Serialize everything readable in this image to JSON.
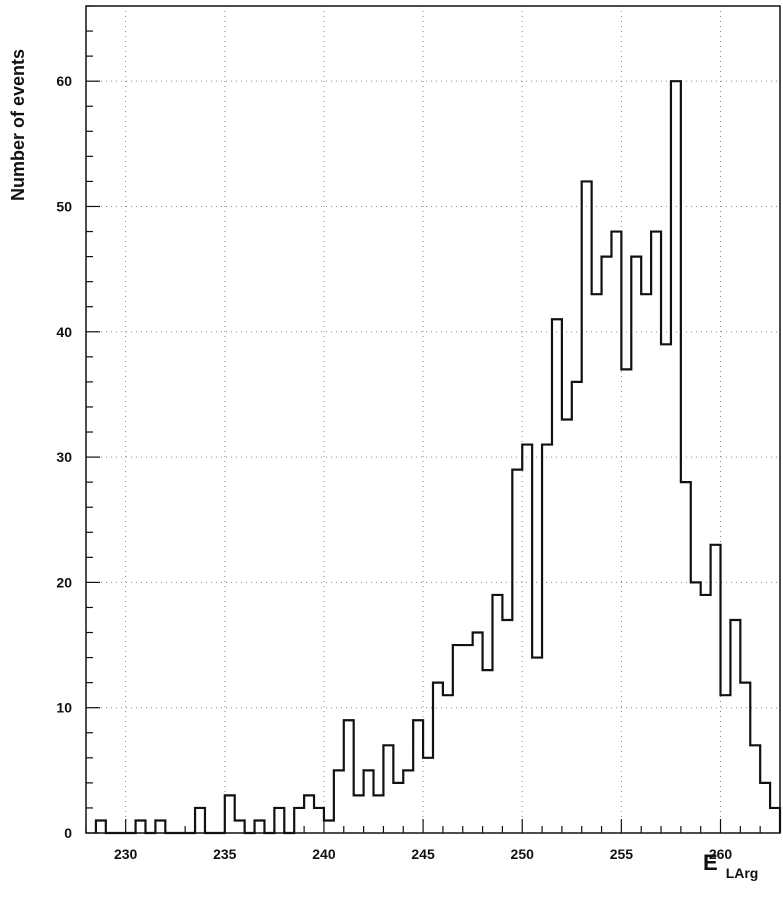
{
  "chart_data": {
    "type": "histogram",
    "title": "",
    "xlabel": "E",
    "xlabel_subscript": "LArg",
    "ylabel": "Number of events",
    "xlim": [
      228,
      263
    ],
    "ylim": [
      0,
      66
    ],
    "xticks": [
      230,
      235,
      240,
      245,
      250,
      255,
      260
    ],
    "yticks": [
      0,
      10,
      20,
      30,
      40,
      50,
      60
    ],
    "grid": true,
    "bin_width": 0.5,
    "bins": [
      [
        228.5,
        1
      ],
      [
        229.0,
        0
      ],
      [
        229.5,
        0
      ],
      [
        230.0,
        0
      ],
      [
        230.5,
        1
      ],
      [
        231.0,
        0
      ],
      [
        231.5,
        1
      ],
      [
        232.0,
        0
      ],
      [
        232.5,
        0
      ],
      [
        233.0,
        0
      ],
      [
        233.5,
        2
      ],
      [
        234.0,
        0
      ],
      [
        234.5,
        0
      ],
      [
        235.0,
        3
      ],
      [
        235.5,
        1
      ],
      [
        236.0,
        0
      ],
      [
        236.5,
        1
      ],
      [
        237.0,
        0
      ],
      [
        237.5,
        2
      ],
      [
        238.0,
        0
      ],
      [
        238.5,
        2
      ],
      [
        239.0,
        3
      ],
      [
        239.5,
        2
      ],
      [
        240.0,
        1
      ],
      [
        240.5,
        5
      ],
      [
        241.0,
        9
      ],
      [
        241.5,
        3
      ],
      [
        242.0,
        5
      ],
      [
        242.5,
        3
      ],
      [
        243.0,
        7
      ],
      [
        243.5,
        4
      ],
      [
        244.0,
        5
      ],
      [
        244.5,
        9
      ],
      [
        245.0,
        6
      ],
      [
        245.5,
        12
      ],
      [
        246.0,
        11
      ],
      [
        246.5,
        15
      ],
      [
        247.0,
        15
      ],
      [
        247.5,
        16
      ],
      [
        248.0,
        13
      ],
      [
        248.5,
        19
      ],
      [
        249.0,
        17
      ],
      [
        249.5,
        29
      ],
      [
        250.0,
        31
      ],
      [
        250.5,
        14
      ],
      [
        251.0,
        31
      ],
      [
        251.5,
        41
      ],
      [
        252.0,
        33
      ],
      [
        252.5,
        36
      ],
      [
        253.0,
        52
      ],
      [
        253.5,
        43
      ],
      [
        254.0,
        46
      ],
      [
        254.5,
        48
      ],
      [
        255.0,
        37
      ],
      [
        255.5,
        46
      ],
      [
        256.0,
        43
      ],
      [
        256.5,
        48
      ],
      [
        257.0,
        39
      ],
      [
        257.5,
        60
      ],
      [
        258.0,
        28
      ],
      [
        258.5,
        20
      ],
      [
        259.0,
        19
      ],
      [
        259.5,
        23
      ],
      [
        260.0,
        11
      ],
      [
        260.5,
        17
      ],
      [
        261.0,
        12
      ],
      [
        261.5,
        7
      ],
      [
        262.0,
        4
      ],
      [
        262.5,
        2
      ]
    ]
  }
}
